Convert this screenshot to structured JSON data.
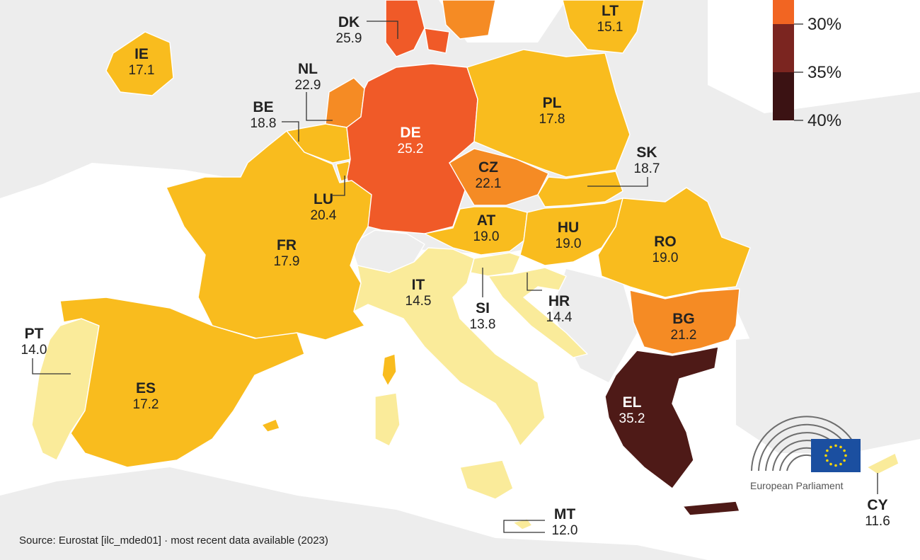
{
  "legend": {
    "ticks": [
      "30%",
      "35%",
      "40%"
    ],
    "colors": [
      "#f26522",
      "#7b2520",
      "#3b1213"
    ]
  },
  "countries": [
    {
      "code": "DK",
      "value": "25.9",
      "fill": "#f05a28"
    },
    {
      "code": "LT",
      "value": "15.1",
      "fill": "#f9bc1e"
    },
    {
      "code": "IE",
      "value": "17.1",
      "fill": "#f9bc1e"
    },
    {
      "code": "NL",
      "value": "22.9",
      "fill": "#f58b24"
    },
    {
      "code": "BE",
      "value": "18.8",
      "fill": "#f9bc1e"
    },
    {
      "code": "PL",
      "value": "17.8",
      "fill": "#f9bc1e"
    },
    {
      "code": "DE",
      "value": "25.2",
      "fill": "#f05a28"
    },
    {
      "code": "CZ",
      "value": "22.1",
      "fill": "#f58b24"
    },
    {
      "code": "SK",
      "value": "18.7",
      "fill": "#f9bc1e"
    },
    {
      "code": "LU",
      "value": "20.4",
      "fill": "#f9bc1e"
    },
    {
      "code": "AT",
      "value": "19.0",
      "fill": "#f9bc1e"
    },
    {
      "code": "HU",
      "value": "19.0",
      "fill": "#f9bc1e"
    },
    {
      "code": "RO",
      "value": "19.0",
      "fill": "#f9bc1e"
    },
    {
      "code": "FR",
      "value": "17.9",
      "fill": "#f9bc1e"
    },
    {
      "code": "IT",
      "value": "14.5",
      "fill": "#faeb9a"
    },
    {
      "code": "SI",
      "value": "13.8",
      "fill": "#faeb9a"
    },
    {
      "code": "HR",
      "value": "14.4",
      "fill": "#faeb9a"
    },
    {
      "code": "BG",
      "value": "21.2",
      "fill": "#f58b24"
    },
    {
      "code": "PT",
      "value": "14.0",
      "fill": "#faeb9a"
    },
    {
      "code": "ES",
      "value": "17.2",
      "fill": "#f9bc1e"
    },
    {
      "code": "EL",
      "value": "35.2",
      "fill": "#4e1a17"
    },
    {
      "code": "MT",
      "value": "12.0",
      "fill": "#faeb9a"
    },
    {
      "code": "CY",
      "value": "11.6",
      "fill": "#faeb9a"
    }
  ],
  "logo": {
    "text": "European Parliament",
    "flag_color": "#1b4fa0",
    "star_color": "#ffd700"
  },
  "source": "Source: Eurostat [ilc_mded01]  ·  most recent data available (2023)"
}
